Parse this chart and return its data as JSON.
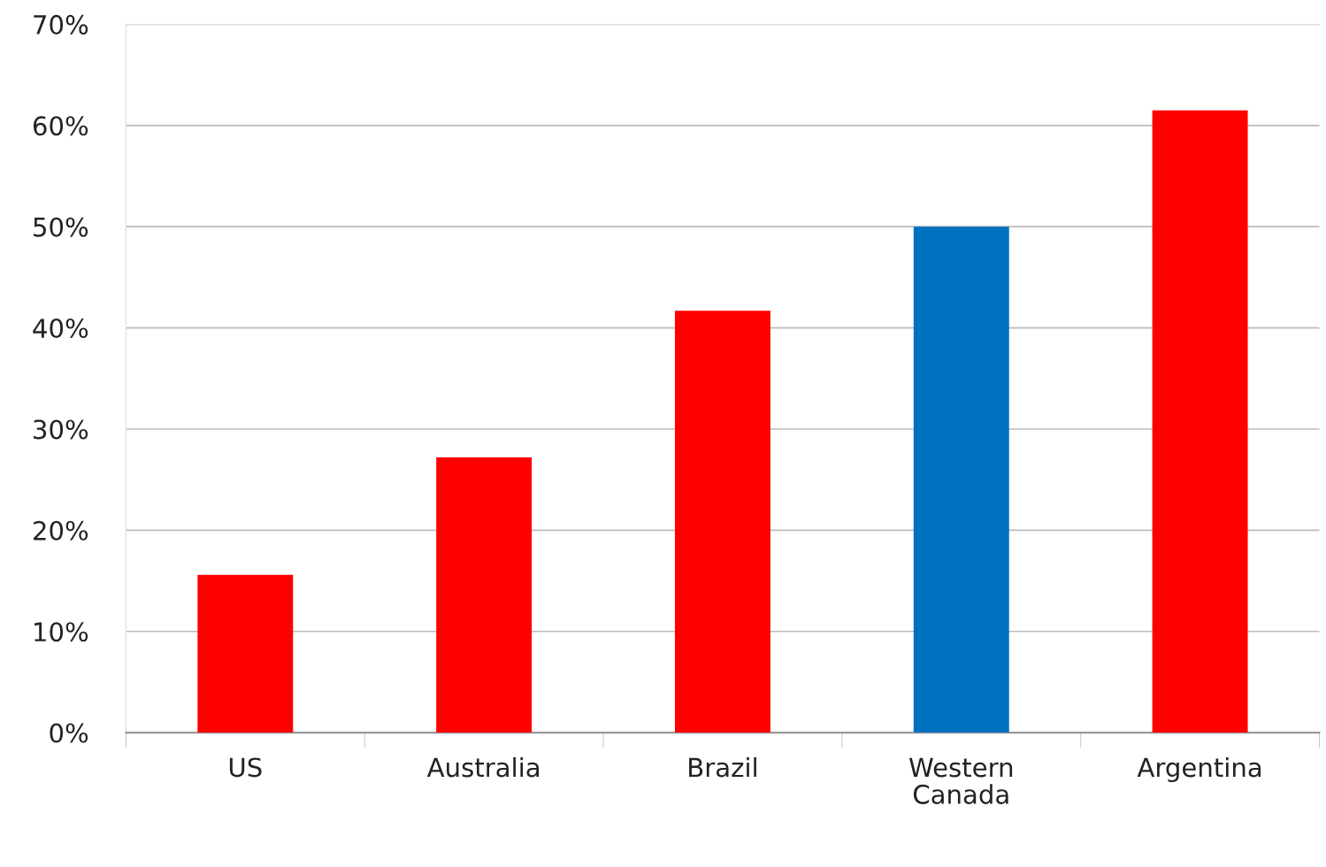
{
  "chart_data": {
    "type": "bar",
    "categories": [
      "US",
      "Australia",
      "Brazil",
      "Western\nCanada",
      "Argentina"
    ],
    "values": [
      15.6,
      27.2,
      41.7,
      50.0,
      61.5
    ],
    "colors": [
      "#ff0000",
      "#ff0000",
      "#ff0000",
      "#0070c0",
      "#ff0000"
    ],
    "ylim": [
      0,
      70
    ],
    "yticks": [
      {
        "value": 0,
        "label": "0%"
      },
      {
        "value": 10,
        "label": "10%"
      },
      {
        "value": 20,
        "label": "20%"
      },
      {
        "value": 30,
        "label": "30%"
      },
      {
        "value": 40,
        "label": "40%"
      },
      {
        "value": 50,
        "label": "50%"
      },
      {
        "value": 60,
        "label": "60%"
      },
      {
        "value": 70,
        "label": "70%"
      }
    ],
    "grid": "y",
    "legend": false
  }
}
